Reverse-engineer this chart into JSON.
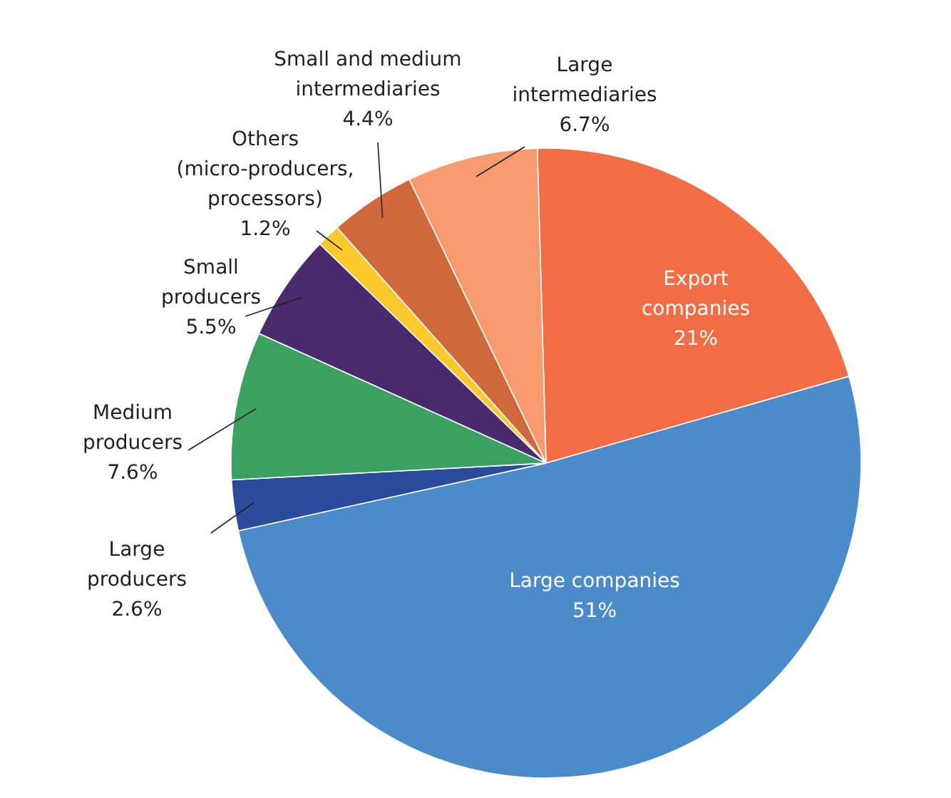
{
  "chart_data": {
    "type": "pie",
    "categories": [
      "Export companies",
      "Large companies",
      "Large producers",
      "Medium producers",
      "Small producers",
      "Others (micro-producers, processors)",
      "Small and medium intermediaries",
      "Large intermediaries"
    ],
    "values": [
      21,
      51,
      2.6,
      7.6,
      5.5,
      1.2,
      4.4,
      6.7
    ],
    "value_labels": [
      "21%",
      "51%",
      "2.6%",
      "7.6%",
      "5.5%",
      "1.2%",
      "4.4%",
      "6.7%"
    ],
    "colors": [
      "#f26d43",
      "#4a8cc9",
      "#2a4a9b",
      "#3aa161",
      "#4a2a6c",
      "#fcc82a",
      "#d0683c",
      "#f79b6e"
    ]
  }
}
